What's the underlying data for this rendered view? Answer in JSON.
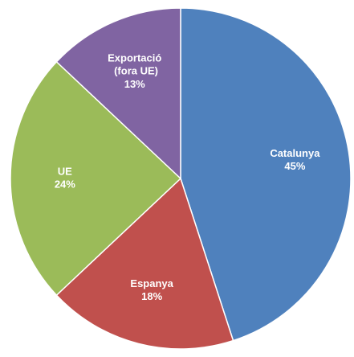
{
  "chart_data": {
    "type": "pie",
    "categories": [
      "Catalunya",
      "Espanya",
      "UE",
      "Exportació (fora UE)"
    ],
    "values": [
      45,
      18,
      24,
      13
    ],
    "value_labels": [
      "45%",
      "18%",
      "24%",
      "13%"
    ],
    "colors": [
      "#4f81bd",
      "#c0504d",
      "#9bbb59",
      "#8064a2"
    ]
  }
}
